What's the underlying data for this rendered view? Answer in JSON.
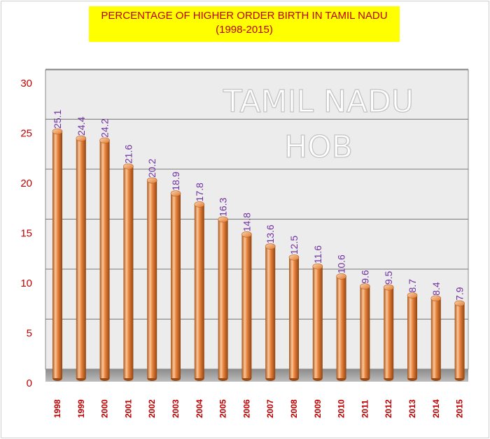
{
  "chart_data": {
    "type": "bar",
    "title": "PERCENTAGE OF HIGHER ORDER BIRTH   IN TAMIL NADU",
    "subtitle": "(1998-2015)",
    "watermark": [
      "TAMIL  NADU",
      "HOB"
    ],
    "categories": [
      "1998",
      "1999",
      "2000",
      "2001",
      "2002",
      "2003",
      "2004",
      "2005",
      "2006",
      "2007",
      "2008",
      "2009",
      "2010",
      "2011",
      "2012",
      "2013",
      "2014",
      "2015"
    ],
    "values": [
      25.1,
      24.4,
      24.2,
      21.6,
      20.2,
      18.9,
      17.8,
      16.3,
      14.8,
      13.6,
      12.5,
      11.6,
      10.6,
      9.6,
      9.5,
      8.7,
      8.4,
      7.9
    ],
    "ylim": [
      0,
      30
    ],
    "yticks": [
      "0",
      "5",
      "10",
      "15",
      "20",
      "25",
      "30"
    ],
    "xlabel": "",
    "ylabel": "",
    "grid": true,
    "legend": "none",
    "colors": {
      "bar": "#e07a2e",
      "bar_light": "#f7be8c",
      "bar_dark": "#9a4a14",
      "axis_label": "#c00000",
      "data_label": "#7030a0",
      "title_bg": "#ffff00",
      "title_text": "#c00000"
    }
  }
}
